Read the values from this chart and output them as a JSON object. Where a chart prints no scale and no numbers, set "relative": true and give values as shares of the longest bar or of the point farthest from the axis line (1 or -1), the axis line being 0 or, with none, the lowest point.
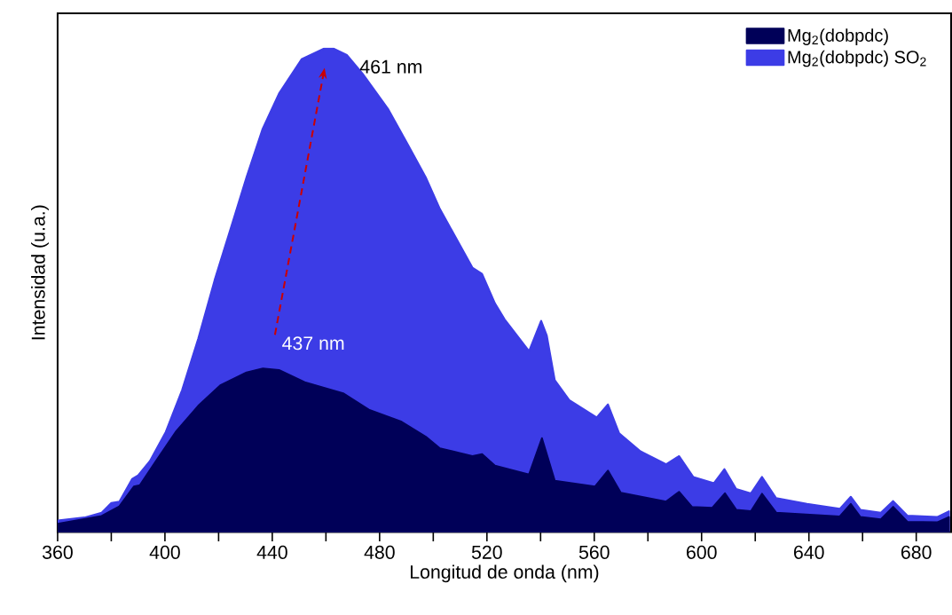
{
  "chart_data": {
    "type": "area",
    "relative": true,
    "xlabel": "Longitud de onda (nm)",
    "ylabel": "Intensidad (u.a.)",
    "xlim": [
      360,
      693
    ],
    "xticks": [
      360,
      {
        "value": 380,
        "label": null
      },
      400,
      {
        "value": 420,
        "label": null
      },
      440,
      {
        "value": 460,
        "label": null
      },
      480,
      {
        "value": 500,
        "label": null
      },
      520,
      {
        "value": 540,
        "label": null
      },
      560,
      {
        "value": 580,
        "label": null
      },
      600,
      {
        "value": 620,
        "label": null
      },
      640,
      {
        "value": 660,
        "label": null
      },
      680
    ],
    "tick_labels": "x",
    "grid": false,
    "legend": "top right",
    "annotations": [
      {
        "text": "461 nm",
        "x": 461,
        "y": 1
      },
      {
        "text": "437 nm",
        "x": 437,
        "y": 0.338
      }
    ],
    "series": [
      {
        "name": "Mg$_{2}$(dobpdc)",
        "color": "#000058",
        "x": [
          360,
          376.4,
          383,
          388.4,
          390.7,
          396.7,
          404,
          412.4,
          420.8,
          430.4,
          436.5,
          442.5,
          452.1,
          466.4,
          476,
          488.2,
          497.2,
          502.5,
          514.6,
          518.2,
          523,
          535.7,
          540.5,
          545.3,
          560.3,
          565.1,
          569.9,
          586.8,
          591.6,
          596.4,
          604,
          608.7,
          612.9,
          618.4,
          622.5,
          627.8,
          651.5,
          655.6,
          659.2,
          666.8,
          671.4,
          676.7,
          687.8,
          692.2
        ],
        "values": [
          0.017,
          0.033,
          0.053,
          0.094,
          0.097,
          0.147,
          0.207,
          0.261,
          0.304,
          0.33,
          0.338,
          0.335,
          0.31,
          0.287,
          0.253,
          0.228,
          0.197,
          0.173,
          0.157,
          0.161,
          0.137,
          0.119,
          0.194,
          0.106,
          0.094,
          0.127,
          0.081,
          0.063,
          0.083,
          0.052,
          0.05,
          0.08,
          0.046,
          0.043,
          0.079,
          0.04,
          0.032,
          0.058,
          0.031,
          0.026,
          0.052,
          0.021,
          0.02,
          0.031
        ]
      },
      {
        "name": "Mg$_{2}$(dobpdc) SO$_{2}$",
        "color": "#3c3ce6",
        "x": [
          360,
          370,
          376.4,
          380,
          383,
          387.8,
          390,
          394.4,
          400.3,
          406.4,
          412.4,
          418.5,
          424.5,
          430.4,
          436.4,
          442.5,
          450.9,
          459.3,
          462.8,
          467.8,
          473.7,
          483.3,
          490.6,
          497.2,
          502.5,
          514.6,
          518.2,
          523,
          526.6,
          535.7,
          540.2,
          542.3,
          545.3,
          550.7,
          560.9,
          565.1,
          569.3,
          577.2,
          586.8,
          591.6,
          596.9,
          604.6,
          608.5,
          612.9,
          618.4,
          622.5,
          627.8,
          639.3,
          651.5,
          655.6,
          659.2,
          666.8,
          671.4,
          676.7,
          687.8,
          692.2
        ],
        "values": [
          0.024,
          0.03,
          0.04,
          0.06,
          0.063,
          0.11,
          0.117,
          0.147,
          0.207,
          0.294,
          0.4,
          0.521,
          0.628,
          0.734,
          0.834,
          0.907,
          0.978,
          1,
          1,
          0.987,
          0.948,
          0.874,
          0.801,
          0.734,
          0.668,
          0.547,
          0.534,
          0.473,
          0.44,
          0.374,
          0.437,
          0.407,
          0.314,
          0.273,
          0.237,
          0.264,
          0.204,
          0.167,
          0.14,
          0.157,
          0.114,
          0.101,
          0.13,
          0.089,
          0.08,
          0.114,
          0.07,
          0.058,
          0.048,
          0.073,
          0.046,
          0.04,
          0.064,
          0.034,
          0.031,
          0.043
        ]
      }
    ]
  }
}
